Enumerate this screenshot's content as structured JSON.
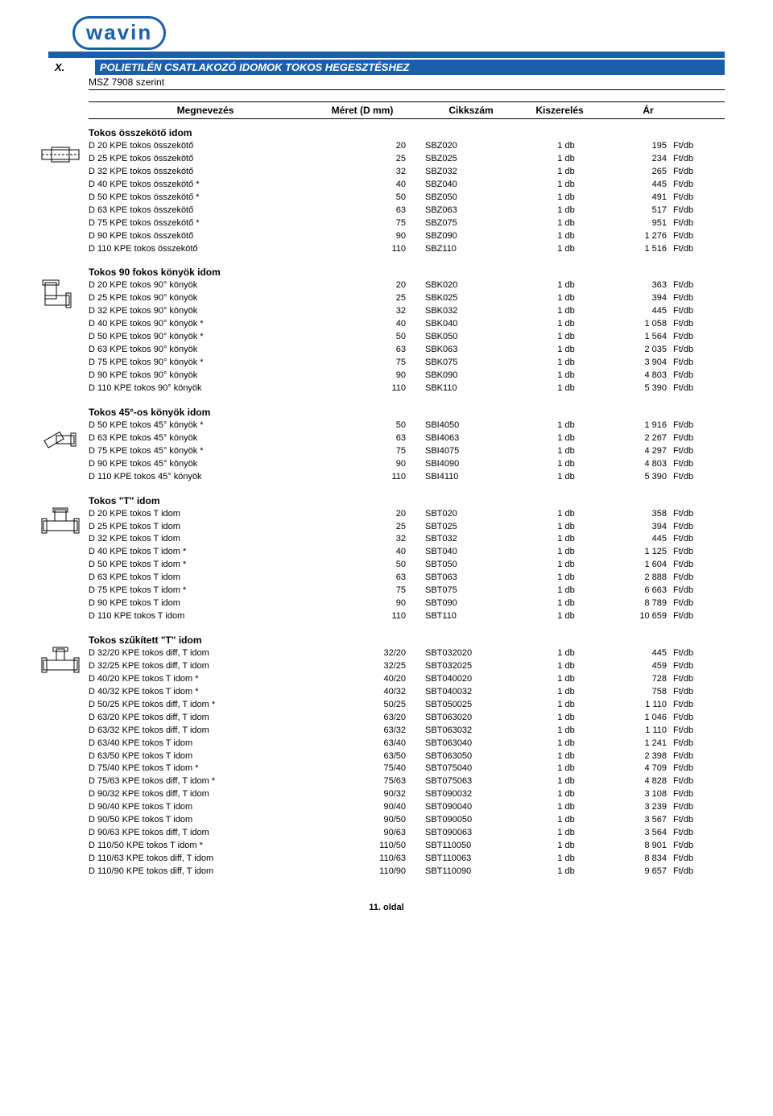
{
  "brand": "wavin",
  "chapter_num": "X.",
  "chapter_title": "POLIETILÉN CSATLAKOZÓ IDOMOK TOKOS HEGESZTÉSHEZ",
  "subtitle": "MSZ 7908 szerint",
  "headers": {
    "name": "Megnevezés",
    "size": "Méret (D mm)",
    "code": "Cikkszám",
    "pack": "Kiszerelés",
    "price": "Ár"
  },
  "unit_label": "Ft/db",
  "pack_label": "1 db",
  "footer": "11. oldal",
  "sections": [
    {
      "title": "Tokos összekötő idom",
      "svg_key": "coupler",
      "rows": [
        {
          "n": "D 20 KPE tokos összekötő",
          "s": "20",
          "c": "SBZ020",
          "p": "195"
        },
        {
          "n": "D 25 KPE tokos összekötő",
          "s": "25",
          "c": "SBZ025",
          "p": "234"
        },
        {
          "n": "D 32 KPE tokos összekötő",
          "s": "32",
          "c": "SBZ032",
          "p": "265"
        },
        {
          "n": "D 40 KPE tokos összekötő *",
          "s": "40",
          "c": "SBZ040",
          "p": "445"
        },
        {
          "n": "D 50 KPE tokos összekötő *",
          "s": "50",
          "c": "SBZ050",
          "p": "491"
        },
        {
          "n": "D 63 KPE tokos összekötő",
          "s": "63",
          "c": "SBZ063",
          "p": "517"
        },
        {
          "n": "D 75 KPE tokos összekötő *",
          "s": "75",
          "c": "SBZ075",
          "p": "951"
        },
        {
          "n": "D 90 KPE tokos összekötő",
          "s": "90",
          "c": "SBZ090",
          "p": "1 276"
        },
        {
          "n": "D 110 KPE tokos összekötő",
          "s": "110",
          "c": "SBZ110",
          "p": "1 516"
        }
      ]
    },
    {
      "title": "Tokos 90 fokos könyök idom",
      "svg_key": "elbow90",
      "rows": [
        {
          "n": "D 20 KPE tokos 90° könyök",
          "s": "20",
          "c": "SBK020",
          "p": "363"
        },
        {
          "n": "D 25 KPE tokos 90° könyök",
          "s": "25",
          "c": "SBK025",
          "p": "394"
        },
        {
          "n": "D 32 KPE tokos 90° könyök",
          "s": "32",
          "c": "SBK032",
          "p": "445"
        },
        {
          "n": "D 40 KPE tokos 90° könyök *",
          "s": "40",
          "c": "SBK040",
          "p": "1 058"
        },
        {
          "n": "D 50 KPE tokos 90° könyök *",
          "s": "50",
          "c": "SBK050",
          "p": "1 564"
        },
        {
          "n": "D 63 KPE tokos 90° könyök",
          "s": "63",
          "c": "SBK063",
          "p": "2 035"
        },
        {
          "n": "D 75 KPE tokos 90° könyök *",
          "s": "75",
          "c": "SBK075",
          "p": "3 904"
        },
        {
          "n": "D 90 KPE tokos 90° könyök",
          "s": "90",
          "c": "SBK090",
          "p": "4 803"
        },
        {
          "n": "D 110 KPE tokos 90° könyök",
          "s": "110",
          "c": "SBK110",
          "p": "5 390"
        }
      ]
    },
    {
      "title": "Tokos 45°-os könyök idom",
      "svg_key": "elbow45",
      "rows": [
        {
          "n": "D 50 KPE tokos 45° könyök *",
          "s": "50",
          "c": "SBI4050",
          "p": "1 916"
        },
        {
          "n": "D 63 KPE tokos 45° könyök",
          "s": "63",
          "c": "SBI4063",
          "p": "2 267"
        },
        {
          "n": "D 75 KPE tokos 45° könyök *",
          "s": "75",
          "c": "SBI4075",
          "p": "4 297"
        },
        {
          "n": "D 90 KPE tokos 45° könyök",
          "s": "90",
          "c": "SBI4090",
          "p": "4 803"
        },
        {
          "n": "D 110 KPE tokos 45° könyök",
          "s": "110",
          "c": "SBI4110",
          "p": "5 390"
        }
      ]
    },
    {
      "title": "Tokos \"T\" idom",
      "svg_key": "tee",
      "rows": [
        {
          "n": "D 20 KPE tokos T idom",
          "s": "20",
          "c": "SBT020",
          "p": "358"
        },
        {
          "n": "D 25 KPE tokos T idom",
          "s": "25",
          "c": "SBT025",
          "p": "394"
        },
        {
          "n": "D 32 KPE tokos T idom",
          "s": "32",
          "c": "SBT032",
          "p": "445"
        },
        {
          "n": "D 40 KPE tokos T idom *",
          "s": "40",
          "c": "SBT040",
          "p": "1 125"
        },
        {
          "n": "D 50 KPE tokos T idom *",
          "s": "50",
          "c": "SBT050",
          "p": "1 604"
        },
        {
          "n": "D 63 KPE tokos T idom",
          "s": "63",
          "c": "SBT063",
          "p": "2 888"
        },
        {
          "n": "D 75 KPE tokos T idom *",
          "s": "75",
          "c": "SBT075",
          "p": "6 663"
        },
        {
          "n": "D 90 KPE tokos T idom",
          "s": "90",
          "c": "SBT090",
          "p": "8 789"
        },
        {
          "n": "D 110 KPE tokos T idom",
          "s": "110",
          "c": "SBT110",
          "p": "10 659"
        }
      ]
    },
    {
      "title": "Tokos szűkített \"T\" idom",
      "svg_key": "tee_red",
      "rows": [
        {
          "n": "D 32/20 KPE tokos diff, T idom",
          "s": "32/20",
          "c": "SBT032020",
          "p": "445"
        },
        {
          "n": "D 32/25 KPE tokos diff, T idom",
          "s": "32/25",
          "c": "SBT032025",
          "p": "459"
        },
        {
          "n": "D 40/20 KPE tokos T idom *",
          "s": "40/20",
          "c": "SBT040020",
          "p": "728"
        },
        {
          "n": "D 40/32 KPE tokos T idom *",
          "s": "40/32",
          "c": "SBT040032",
          "p": "758"
        },
        {
          "n": "D 50/25 KPE tokos diff, T idom *",
          "s": "50/25",
          "c": "SBT050025",
          "p": "1 110"
        },
        {
          "n": "D 63/20 KPE tokos diff, T idom",
          "s": "63/20",
          "c": "SBT063020",
          "p": "1 046"
        },
        {
          "n": "D 63/32 KPE tokos diff, T idom",
          "s": "63/32",
          "c": "SBT063032",
          "p": "1 110"
        },
        {
          "n": "D 63/40 KPE tokos T idom",
          "s": "63/40",
          "c": "SBT063040",
          "p": "1 241"
        },
        {
          "n": "D 63/50 KPE tokos T idom",
          "s": "63/50",
          "c": "SBT063050",
          "p": "2 398"
        },
        {
          "n": "D 75/40 KPE tokos T idom *",
          "s": "75/40",
          "c": "SBT075040",
          "p": "4 709"
        },
        {
          "n": "D 75/63 KPE tokos diff, T idom *",
          "s": "75/63",
          "c": "SBT075063",
          "p": "4 828"
        },
        {
          "n": "D 90/32 KPE tokos diff, T idom",
          "s": "90/32",
          "c": "SBT090032",
          "p": "3 108"
        },
        {
          "n": "D 90/40 KPE tokos T idom",
          "s": "90/40",
          "c": "SBT090040",
          "p": "3 239"
        },
        {
          "n": "D 90/50 KPE tokos T idom",
          "s": "90/50",
          "c": "SBT090050",
          "p": "3 567"
        },
        {
          "n": "D 90/63 KPE tokos diff, T idom",
          "s": "90/63",
          "c": "SBT090063",
          "p": "3 564"
        },
        {
          "n": "D 110/50 KPE tokos T idom *",
          "s": "110/50",
          "c": "SBT110050",
          "p": "8 901"
        },
        {
          "n": "D 110/63 KPE tokos diff, T idom",
          "s": "110/63",
          "c": "SBT110063",
          "p": "8 834"
        },
        {
          "n": "D 110/90 KPE tokos diff, T idom",
          "s": "110/90",
          "c": "SBT110090",
          "p": "9 657"
        }
      ]
    }
  ]
}
